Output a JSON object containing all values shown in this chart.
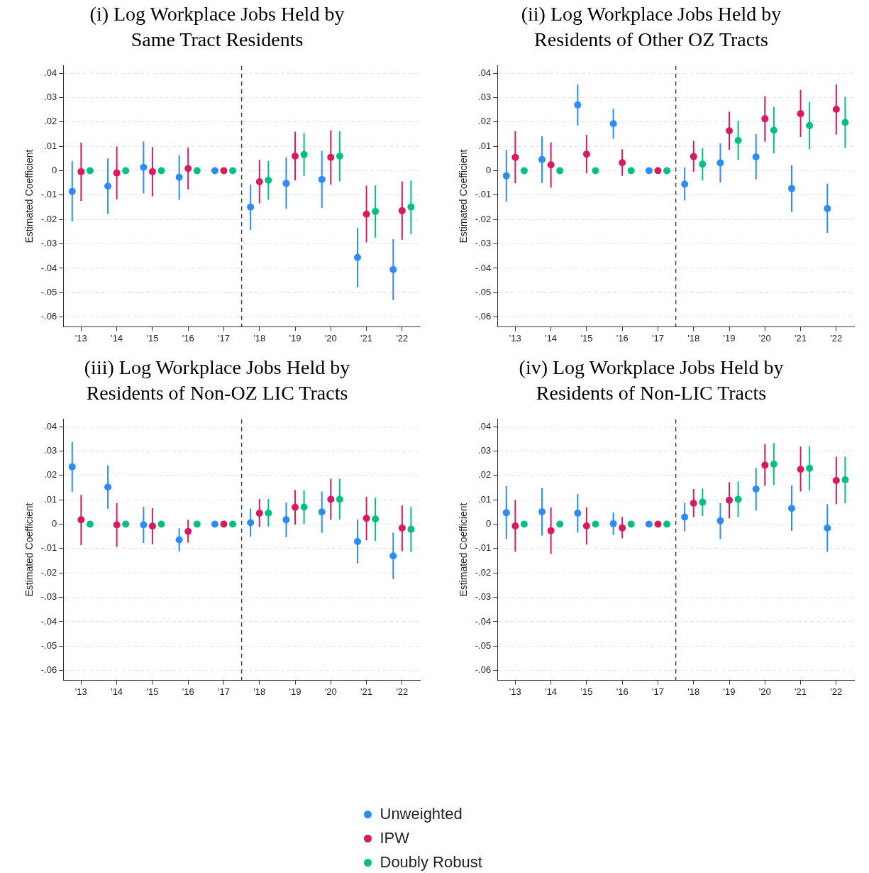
{
  "chart_data": [
    {
      "type": "scatter",
      "title": "(i) Log Workplace Jobs Held by Same Tract Residents",
      "ylabel": "Estimated Coefficient",
      "xlim": [
        2012.5,
        2022.5
      ],
      "ylim": [
        -0.064,
        0.043
      ],
      "xticks": [
        {
          "value": 2013,
          "label": "'13"
        },
        {
          "value": 2014,
          "label": "'14"
        },
        {
          "value": 2015,
          "label": "'15"
        },
        {
          "value": 2016,
          "label": "'16"
        },
        {
          "value": 2017,
          "label": "'17"
        },
        {
          "value": 2018,
          "label": "'18"
        },
        {
          "value": 2019,
          "label": "'19"
        },
        {
          "value": 2020,
          "label": "'20"
        },
        {
          "value": 2021,
          "label": "'21"
        },
        {
          "value": 2022,
          "label": "'22"
        }
      ],
      "yticks": [
        {
          "value": 0.04,
          "label": ".04"
        },
        {
          "value": 0.03,
          "label": ".03"
        },
        {
          "value": 0.02,
          "label": ".02"
        },
        {
          "value": 0.01,
          "label": ".01"
        },
        {
          "value": 0,
          "label": "0"
        },
        {
          "value": -0.01,
          "label": "-.01"
        },
        {
          "value": -0.02,
          "label": "-.02"
        },
        {
          "value": -0.03,
          "label": "-.03"
        },
        {
          "value": -0.04,
          "label": "-.04"
        },
        {
          "value": -0.05,
          "label": "-.05"
        },
        {
          "value": -0.06,
          "label": "-.06"
        }
      ],
      "grid": "y",
      "marker": "circle",
      "legend": "bottom",
      "ref_lines": [
        {
          "axis": "x",
          "value": 2017.5,
          "color": "#444444",
          "line_style": "dashed"
        }
      ],
      "series": [
        {
          "name": "Unweighted",
          "color": "#2e8bff",
          "x": [
            2012.75,
            2013.75,
            2014.75,
            2015.75,
            2016.75,
            2017.75,
            2018.75,
            2019.75,
            2020.75,
            2021.75
          ],
          "values": [
            -0.0085,
            -0.0063,
            0.0014,
            -0.0027,
            0,
            -0.0149,
            -0.0052,
            -0.0036,
            -0.0356,
            -0.0405
          ],
          "errors": [
            [
              -0.0208,
              0.0039
            ],
            [
              -0.0177,
              0.005
            ],
            [
              -0.0093,
              0.012
            ],
            [
              -0.0119,
              0.0063
            ],
            null,
            [
              -0.0243,
              -0.0056
            ],
            [
              -0.0156,
              0.0054
            ],
            [
              -0.0153,
              0.0082
            ],
            [
              -0.0478,
              -0.0235
            ],
            [
              -0.053,
              -0.028
            ]
          ]
        },
        {
          "name": "IPW",
          "color": "#d81b60",
          "x": [
            2013,
            2014,
            2015,
            2016,
            2017,
            2018,
            2019,
            2020,
            2021,
            2022
          ],
          "values": [
            -0.0004,
            -0.0009,
            -0.0004,
            0.0009,
            0,
            -0.0045,
            0.006,
            0.0055,
            -0.0178,
            -0.0164
          ],
          "errors": [
            [
              -0.0124,
              0.0115
            ],
            [
              -0.0118,
              0.0099
            ],
            [
              -0.0105,
              0.0097
            ],
            [
              -0.0077,
              0.0095
            ],
            null,
            [
              -0.0134,
              0.0044
            ],
            [
              -0.004,
              0.016
            ],
            [
              -0.0057,
              0.0166
            ],
            [
              -0.0294,
              -0.0061
            ],
            [
              -0.0283,
              -0.0044
            ]
          ]
        },
        {
          "name": "Doubly Robust",
          "color": "#00c07f",
          "x": [
            2013.25,
            2014.25,
            2015.25,
            2016.25,
            2017.25,
            2018.25,
            2019.25,
            2020.25,
            2021.25,
            2022.25
          ],
          "values": [
            0,
            0,
            0,
            0,
            0,
            -0.0039,
            0.0066,
            0.006,
            -0.0167,
            -0.0149
          ],
          "errors": [
            null,
            null,
            null,
            null,
            null,
            [
              -0.0119,
              0.004
            ],
            [
              -0.0022,
              0.0155
            ],
            [
              -0.0044,
              0.0162
            ],
            [
              -0.0275,
              -0.006
            ],
            [
              -0.026,
              -0.004
            ]
          ]
        }
      ]
    },
    {
      "type": "scatter",
      "title": "(ii) Log Workplace Jobs Held by Residents of Other OZ Tracts",
      "ylabel": "Estimated Coefficient",
      "xlim": [
        2012.5,
        2022.5
      ],
      "ylim": [
        -0.064,
        0.043
      ],
      "xticks": [
        {
          "value": 2013,
          "label": "'13"
        },
        {
          "value": 2014,
          "label": "'14"
        },
        {
          "value": 2015,
          "label": "'15"
        },
        {
          "value": 2016,
          "label": "'16"
        },
        {
          "value": 2017,
          "label": "'17"
        },
        {
          "value": 2018,
          "label": "'18"
        },
        {
          "value": 2019,
          "label": "'19"
        },
        {
          "value": 2020,
          "label": "'20"
        },
        {
          "value": 2021,
          "label": "'21"
        },
        {
          "value": 2022,
          "label": "'22"
        }
      ],
      "yticks": [
        {
          "value": 0.04,
          "label": ".04"
        },
        {
          "value": 0.03,
          "label": ".03"
        },
        {
          "value": 0.02,
          "label": ".02"
        },
        {
          "value": 0.01,
          "label": ".01"
        },
        {
          "value": 0,
          "label": "0"
        },
        {
          "value": -0.01,
          "label": "-.01"
        },
        {
          "value": -0.02,
          "label": "-.02"
        },
        {
          "value": -0.03,
          "label": "-.03"
        },
        {
          "value": -0.04,
          "label": "-.04"
        },
        {
          "value": -0.05,
          "label": "-.05"
        },
        {
          "value": -0.06,
          "label": "-.06"
        }
      ],
      "grid": "y",
      "marker": "circle",
      "ref_lines": [
        {
          "axis": "x",
          "value": 2017.5,
          "color": "#444444",
          "line_style": "dashed"
        }
      ],
      "series": [
        {
          "color": "#2e8bff",
          "x": [
            2012.75,
            2013.75,
            2014.75,
            2015.75,
            2016.75,
            2017.75,
            2018.75,
            2019.75,
            2020.75,
            2021.75
          ],
          "values": [
            -0.0021,
            0.0046,
            0.027,
            0.0193,
            0,
            -0.0055,
            0.0032,
            0.0057,
            -0.0073,
            -0.0155
          ],
          "errors": [
            [
              -0.0127,
              0.0085
            ],
            [
              -0.005,
              0.0141
            ],
            [
              0.0186,
              0.0354
            ],
            [
              0.0132,
              0.0254
            ],
            null,
            [
              -0.0122,
              0.0014
            ],
            [
              -0.0048,
              0.0112
            ],
            [
              -0.0035,
              0.015
            ],
            [
              -0.0169,
              0.0022
            ],
            [
              -0.0255,
              -0.0053
            ]
          ]
        },
        {
          "color": "#d81b60",
          "x": [
            2013,
            2014,
            2015,
            2016,
            2017,
            2018,
            2019,
            2020,
            2021,
            2022
          ],
          "values": [
            0.0055,
            0.0024,
            0.0068,
            0.0033,
            0,
            0.0058,
            0.0164,
            0.0213,
            0.0234,
            0.0252
          ],
          "errors": [
            [
              -0.0051,
              0.0163
            ],
            [
              -0.007,
              0.0116
            ],
            [
              -0.0011,
              0.0147
            ],
            [
              -0.0021,
              0.0088
            ],
            null,
            [
              -0.0004,
              0.0122
            ],
            [
              0.0086,
              0.0242
            ],
            [
              0.0119,
              0.0306
            ],
            [
              0.0138,
              0.0331
            ],
            [
              0.0148,
              0.0354
            ]
          ]
        },
        {
          "color": "#00c07f",
          "x": [
            2013.25,
            2014.25,
            2015.25,
            2016.25,
            2017.25,
            2018.25,
            2019.25,
            2020.25,
            2021.25,
            2022.25
          ],
          "values": [
            0,
            0,
            0,
            0,
            0,
            0.0027,
            0.0124,
            0.0166,
            0.0185,
            0.0198
          ],
          "errors": [
            null,
            null,
            null,
            null,
            null,
            [
              -0.004,
              0.0092
            ],
            [
              0.0044,
              0.0205
            ],
            [
              0.0071,
              0.0261
            ],
            [
              0.0088,
              0.0282
            ],
            [
              0.0094,
              0.0303
            ]
          ]
        }
      ]
    },
    {
      "type": "scatter",
      "title": "(iii) Log Workplace Jobs Held by Residents of Non-OZ LIC Tracts",
      "ylabel": "Estimated Coefficient",
      "xlim": [
        2012.5,
        2022.5
      ],
      "ylim": [
        -0.064,
        0.043
      ],
      "xticks": [
        {
          "value": 2013,
          "label": "'13"
        },
        {
          "value": 2014,
          "label": "'14"
        },
        {
          "value": 2015,
          "label": "'15"
        },
        {
          "value": 2016,
          "label": "'16"
        },
        {
          "value": 2017,
          "label": "'17"
        },
        {
          "value": 2018,
          "label": "'18"
        },
        {
          "value": 2019,
          "label": "'19"
        },
        {
          "value": 2020,
          "label": "'20"
        },
        {
          "value": 2021,
          "label": "'21"
        },
        {
          "value": 2022,
          "label": "'22"
        }
      ],
      "yticks": [
        {
          "value": 0.04,
          "label": ".04"
        },
        {
          "value": 0.03,
          "label": ".03"
        },
        {
          "value": 0.02,
          "label": ".02"
        },
        {
          "value": 0.01,
          "label": ".01"
        },
        {
          "value": 0,
          "label": "0"
        },
        {
          "value": -0.01,
          "label": "-.01"
        },
        {
          "value": -0.02,
          "label": "-.02"
        },
        {
          "value": -0.03,
          "label": "-.03"
        },
        {
          "value": -0.04,
          "label": "-.04"
        },
        {
          "value": -0.05,
          "label": "-.05"
        },
        {
          "value": -0.06,
          "label": "-.06"
        }
      ],
      "grid": "y",
      "marker": "circle",
      "ref_lines": [
        {
          "axis": "x",
          "value": 2017.5,
          "color": "#444444",
          "line_style": "dashed"
        }
      ],
      "series": [
        {
          "color": "#2e8bff",
          "x": [
            2012.75,
            2013.75,
            2014.75,
            2015.75,
            2016.75,
            2017.75,
            2018.75,
            2019.75,
            2020.75,
            2021.75
          ],
          "values": [
            0.0235,
            0.0152,
            -0.0003,
            -0.0064,
            0,
            0.0006,
            0.0018,
            0.005,
            -0.0071,
            -0.013
          ],
          "errors": [
            [
              0.0133,
              0.0337
            ],
            [
              0.0063,
              0.0241
            ],
            [
              -0.0077,
              0.0071
            ],
            [
              -0.0111,
              -0.0017
            ],
            null,
            [
              -0.0051,
              0.0064
            ],
            [
              -0.0053,
              0.0089
            ],
            [
              -0.0035,
              0.0134
            ],
            [
              -0.0161,
              0.0019
            ],
            [
              -0.0225,
              -0.0035
            ]
          ]
        },
        {
          "color": "#d81b60",
          "x": [
            2013,
            2014,
            2015,
            2016,
            2017,
            2018,
            2019,
            2020,
            2021,
            2022
          ],
          "values": [
            0.0018,
            -0.0003,
            -0.0008,
            -0.003,
            0,
            0.0045,
            0.0069,
            0.0102,
            0.0024,
            -0.0016
          ],
          "errors": [
            [
              -0.0086,
              0.012
            ],
            [
              -0.0093,
              0.0086
            ],
            [
              -0.0082,
              0.0066
            ],
            [
              -0.0076,
              0.0018
            ],
            null,
            [
              -0.0012,
              0.0103
            ],
            [
              -0.0002,
              0.014
            ],
            [
              0.0018,
              0.0186
            ],
            [
              -0.0066,
              0.0112
            ],
            [
              -0.0111,
              0.0077
            ]
          ]
        },
        {
          "color": "#00c07f",
          "x": [
            2013.25,
            2014.25,
            2015.25,
            2016.25,
            2017.25,
            2018.25,
            2019.25,
            2020.25,
            2021.25,
            2022.25
          ],
          "values": [
            0,
            0,
            0,
            0,
            0,
            0.0046,
            0.007,
            0.0102,
            0.0021,
            -0.0021
          ],
          "errors": [
            null,
            null,
            null,
            null,
            null,
            [
              -0.001,
              0.0103
            ],
            [
              0,
              0.0139
            ],
            [
              0.0019,
              0.0185
            ],
            [
              -0.0068,
              0.0109
            ],
            [
              -0.0114,
              0.0071
            ]
          ]
        }
      ]
    },
    {
      "type": "scatter",
      "title": "(iv) Log Workplace Jobs Held by Residents of Non-LIC Tracts",
      "ylabel": "Estimated Coefficient",
      "xlim": [
        2012.5,
        2022.5
      ],
      "ylim": [
        -0.064,
        0.043
      ],
      "xticks": [
        {
          "value": 2013,
          "label": "'13"
        },
        {
          "value": 2014,
          "label": "'14"
        },
        {
          "value": 2015,
          "label": "'15"
        },
        {
          "value": 2016,
          "label": "'16"
        },
        {
          "value": 2017,
          "label": "'17"
        },
        {
          "value": 2018,
          "label": "'18"
        },
        {
          "value": 2019,
          "label": "'19"
        },
        {
          "value": 2020,
          "label": "'20"
        },
        {
          "value": 2021,
          "label": "'21"
        },
        {
          "value": 2022,
          "label": "'22"
        }
      ],
      "yticks": [
        {
          "value": 0.04,
          "label": ".04"
        },
        {
          "value": 0.03,
          "label": ".03"
        },
        {
          "value": 0.02,
          "label": ".02"
        },
        {
          "value": 0.01,
          "label": ".01"
        },
        {
          "value": 0,
          "label": "0"
        },
        {
          "value": -0.01,
          "label": "-.01"
        },
        {
          "value": -0.02,
          "label": "-.02"
        },
        {
          "value": -0.03,
          "label": "-.03"
        },
        {
          "value": -0.04,
          "label": "-.04"
        },
        {
          "value": -0.05,
          "label": "-.05"
        },
        {
          "value": -0.06,
          "label": "-.06"
        }
      ],
      "grid": "y",
      "marker": "circle",
      "ref_lines": [
        {
          "axis": "x",
          "value": 2017.5,
          "color": "#444444",
          "line_style": "dashed"
        }
      ],
      "series": [
        {
          "color": "#2e8bff",
          "x": [
            2012.75,
            2013.75,
            2014.75,
            2015.75,
            2016.75,
            2017.75,
            2018.75,
            2019.75,
            2020.75,
            2021.75
          ],
          "values": [
            0.0047,
            0.0051,
            0.0045,
            0.0002,
            0,
            0.0029,
            0.0014,
            0.0144,
            0.0065,
            -0.0016
          ],
          "errors": [
            [
              -0.0062,
              0.0156
            ],
            [
              -0.0047,
              0.0148
            ],
            [
              -0.0034,
              0.0124
            ],
            [
              -0.0044,
              0.0048
            ],
            null,
            [
              -0.0029,
              0.0088
            ],
            [
              -0.0062,
              0.0086
            ],
            [
              0.0056,
              0.0231
            ],
            [
              -0.0027,
              0.0158
            ],
            [
              -0.0113,
              0.0082
            ]
          ]
        },
        {
          "color": "#d81b60",
          "x": [
            2013,
            2014,
            2015,
            2016,
            2017,
            2018,
            2019,
            2020,
            2021,
            2022
          ],
          "values": [
            -0.0007,
            -0.0027,
            -0.0007,
            -0.0015,
            0,
            0.0086,
            0.0098,
            0.0242,
            0.0225,
            0.0179
          ],
          "errors": [
            [
              -0.0113,
              0.0099
            ],
            [
              -0.0122,
              0.0069
            ],
            [
              -0.0084,
              0.0069
            ],
            [
              -0.0058,
              0.0029
            ],
            null,
            [
              0.0029,
              0.0144
            ],
            [
              0.0024,
              0.0172
            ],
            [
              0.0157,
              0.0329
            ],
            [
              0.0134,
              0.0318
            ],
            [
              0.0082,
              0.0276
            ]
          ]
        },
        {
          "color": "#00c07f",
          "x": [
            2013.25,
            2014.25,
            2015.25,
            2016.25,
            2017.25,
            2018.25,
            2019.25,
            2020.25,
            2021.25,
            2022.25
          ],
          "values": [
            0,
            0,
            0,
            0,
            0,
            0.009,
            0.0102,
            0.0246,
            0.0229,
            0.0182
          ],
          "errors": [
            null,
            null,
            null,
            null,
            null,
            [
              0.0033,
              0.0146
            ],
            [
              0.0029,
              0.0175
            ],
            [
              0.0161,
              0.0332
            ],
            [
              0.0139,
              0.0319
            ],
            [
              0.0086,
              0.0277
            ]
          ]
        }
      ]
    }
  ]
}
